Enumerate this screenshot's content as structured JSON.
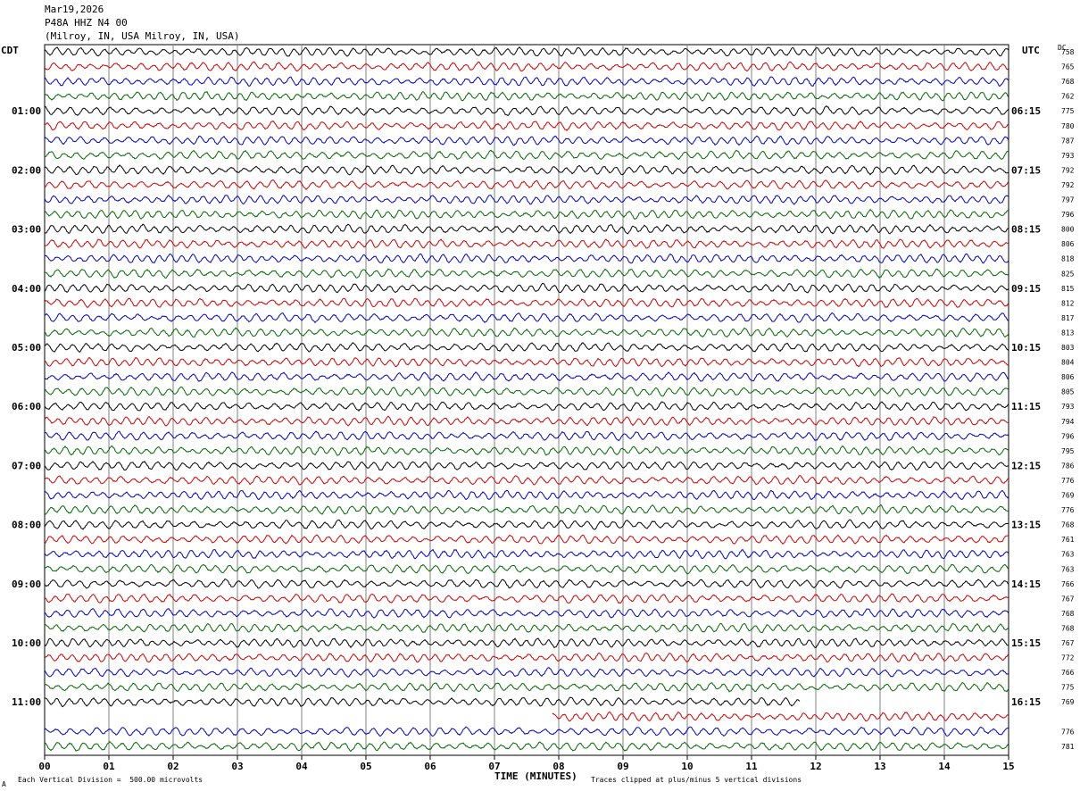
{
  "header": {
    "date": "Mar19,2026",
    "station": "P48A HHZ N4 00",
    "location": "(Milroy, IN, USA Milroy, IN, USA)"
  },
  "left_tz": "CDT",
  "right_tz": "UTC",
  "dc_header": "DC",
  "left_times": [
    "01:00",
    "02:00",
    "03:00",
    "04:00",
    "05:00",
    "06:00",
    "07:00",
    "08:00",
    "09:00",
    "10:00",
    "11:00"
  ],
  "right_times": [
    "06:15",
    "07:15",
    "08:15",
    "09:15",
    "10:15",
    "11:15",
    "12:15",
    "13:15",
    "14:15",
    "15:15",
    "16:15"
  ],
  "dc_values": [
    "758",
    "765",
    "768",
    "762",
    "775",
    "780",
    "787",
    "793",
    "792",
    "792",
    "797",
    "796",
    "800",
    "806",
    "818",
    "825",
    "815",
    "812",
    "817",
    "813",
    "803",
    "804",
    "806",
    "805",
    "793",
    "794",
    "796",
    "795",
    "786",
    "776",
    "769",
    "776",
    "768",
    "761",
    "763",
    "763",
    "766",
    "767",
    "768",
    "768",
    "767",
    "772",
    "766",
    "775",
    "769",
    "",
    "776",
    "781"
  ],
  "x_ticks": [
    "00",
    "01",
    "02",
    "03",
    "04",
    "05",
    "06",
    "07",
    "08",
    "09",
    "10",
    "11",
    "12",
    "13",
    "14",
    "15"
  ],
  "x_axis_title": "TIME (MINUTES)",
  "footer_left": "Each Vertical Division =  500.00 microvolts",
  "footer_right": "Traces clipped at plus/minus 5 vertical divisions",
  "footer_mark": "A",
  "trace_colors": [
    "#000000",
    "#cc0000",
    "#0000bb",
    "#006600"
  ],
  "grid_color": "#808080",
  "chart_data": {
    "type": "line",
    "title": "P48A HHZ N4 00",
    "xlabel": "TIME (MINUTES)",
    "xlim": [
      0,
      15
    ],
    "trace_count": 48,
    "trace_minutes": 15,
    "partial_traces": [
      {
        "index": 44,
        "end_minute": 11.75
      },
      {
        "index": 45,
        "start_minute": 7.9
      }
    ]
  }
}
